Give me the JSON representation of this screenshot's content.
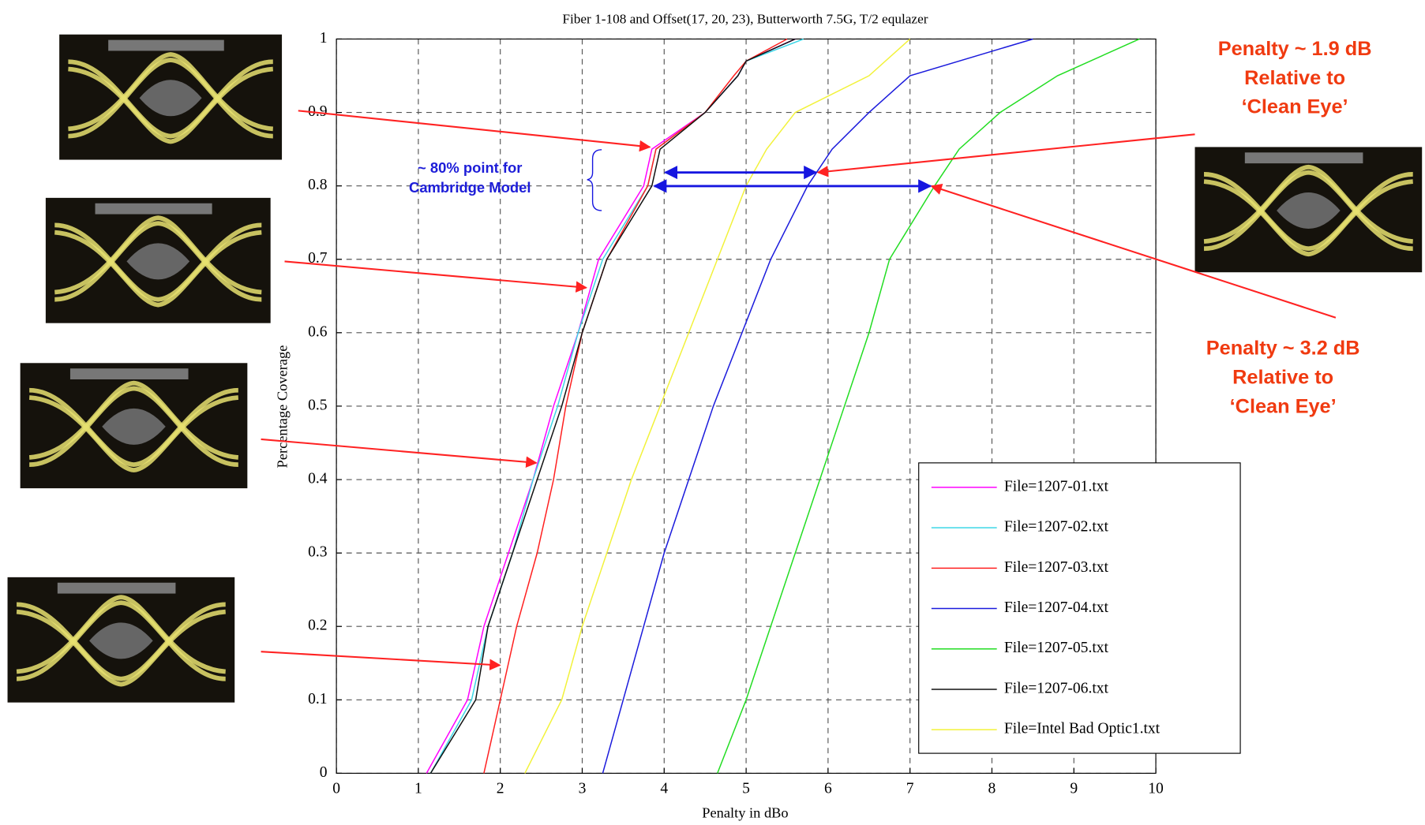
{
  "chart_data": {
    "type": "line",
    "title": "Fiber 1-108 and Offset(17, 20, 23), Butterworth 7.5G, T/2 equlazer",
    "x_label": "Penalty in dBo",
    "y_label": "Percentage Coverage",
    "xlim": [
      0,
      10
    ],
    "ylim": [
      0,
      1
    ],
    "xticks": [
      0,
      1,
      2,
      3,
      4,
      5,
      6,
      7,
      8,
      9,
      10
    ],
    "yticks": [
      0,
      0.1,
      0.2,
      0.3,
      0.4,
      0.5,
      0.6,
      0.7,
      0.8,
      0.9,
      1
    ],
    "grid": true,
    "series": [
      {
        "name": "File=1207-01.txt",
        "color": "#ff00ff",
        "x": [
          1.1,
          1.6,
          1.8,
          2.1,
          2.4,
          2.65,
          2.95,
          3.2,
          3.75,
          3.85,
          4.5,
          4.9,
          5.0,
          5.6
        ],
        "values": [
          0,
          0.1,
          0.2,
          0.3,
          0.4,
          0.5,
          0.6,
          0.7,
          0.8,
          0.85,
          0.9,
          0.95,
          0.97,
          1
        ]
      },
      {
        "name": "File=1207-02.txt",
        "color": "#3cd6e6",
        "x": [
          1.15,
          1.65,
          1.85,
          2.15,
          2.4,
          2.7,
          2.95,
          3.25,
          3.8,
          3.9,
          4.5,
          4.9,
          5.0,
          5.7
        ],
        "values": [
          0,
          0.1,
          0.2,
          0.3,
          0.4,
          0.5,
          0.6,
          0.7,
          0.8,
          0.85,
          0.9,
          0.95,
          0.97,
          1
        ]
      },
      {
        "name": "File=1207-03.txt",
        "color": "#ff2020",
        "x": [
          1.8,
          2.0,
          2.2,
          2.45,
          2.65,
          2.8,
          3.0,
          3.3,
          3.8,
          3.9,
          4.5,
          4.85,
          5.0,
          5.5
        ],
        "values": [
          0,
          0.1,
          0.2,
          0.3,
          0.4,
          0.5,
          0.6,
          0.7,
          0.8,
          0.85,
          0.9,
          0.95,
          0.97,
          1
        ]
      },
      {
        "name": "File=1207-04.txt",
        "color": "#1a1adc",
        "x": [
          3.25,
          3.5,
          3.75,
          4.0,
          4.3,
          4.6,
          4.95,
          5.3,
          5.75,
          6.05,
          6.5,
          7.0,
          8.5
        ],
        "values": [
          0,
          0.1,
          0.2,
          0.3,
          0.4,
          0.5,
          0.6,
          0.7,
          0.8,
          0.85,
          0.9,
          0.95,
          1
        ]
      },
      {
        "name": "File=1207-05.txt",
        "color": "#22dd22",
        "x": [
          4.65,
          5.0,
          5.3,
          5.6,
          5.9,
          6.2,
          6.5,
          6.75,
          7.3,
          7.6,
          8.1,
          8.8,
          9.8
        ],
        "values": [
          0,
          0.1,
          0.2,
          0.3,
          0.4,
          0.5,
          0.6,
          0.7,
          0.8,
          0.85,
          0.9,
          0.95,
          1
        ]
      },
      {
        "name": "File=1207-06.txt",
        "color": "#111111",
        "x": [
          1.15,
          1.7,
          1.85,
          2.15,
          2.45,
          2.75,
          3.0,
          3.3,
          3.85,
          3.95,
          4.5,
          4.9,
          5.0,
          5.6
        ],
        "values": [
          0,
          0.1,
          0.2,
          0.3,
          0.4,
          0.5,
          0.6,
          0.7,
          0.8,
          0.85,
          0.9,
          0.95,
          0.97,
          1
        ]
      },
      {
        "name": "File=Intel Bad Optic1.txt",
        "color": "#f2f23a",
        "x": [
          2.3,
          2.75,
          3.0,
          3.3,
          3.6,
          3.95,
          4.3,
          4.65,
          5.0,
          5.25,
          5.6,
          6.5,
          7.0
        ],
        "values": [
          0,
          0.1,
          0.2,
          0.3,
          0.4,
          0.5,
          0.6,
          0.7,
          0.8,
          0.85,
          0.9,
          0.95,
          1
        ]
      }
    ],
    "annotations": [
      {
        "lines": [
          "~ 80% point for",
          "Cambridge Model"
        ]
      },
      {
        "lines": [
          "Penalty ~ 1.9 dB",
          "Relative to",
          "‘Clean Eye’"
        ]
      },
      {
        "lines": [
          "Penalty ~ 3.2 dB",
          "Relative to",
          "‘Clean Eye’"
        ]
      }
    ]
  }
}
